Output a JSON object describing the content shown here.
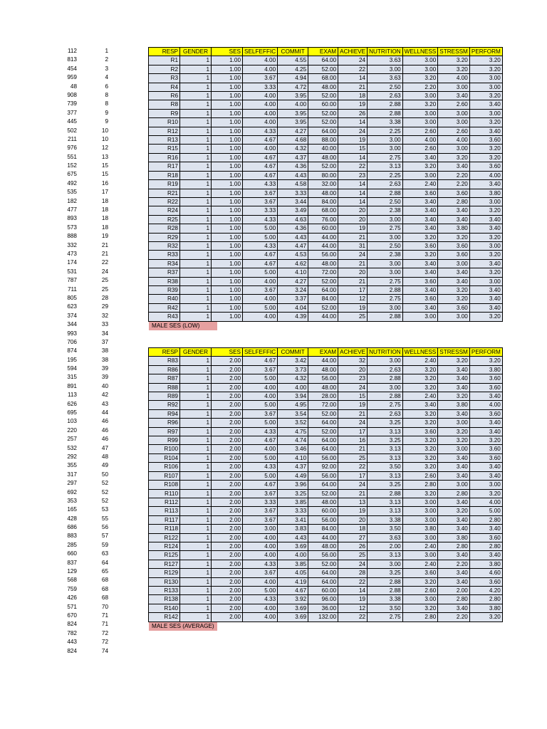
{
  "left_columns": [
    [
      "112",
      "1"
    ],
    [
      "813",
      "2"
    ],
    [
      "454",
      "3"
    ],
    [
      "959",
      "4"
    ],
    [
      "48",
      "6"
    ],
    [
      "908",
      "8"
    ],
    [
      "739",
      "8"
    ],
    [
      "377",
      "9"
    ],
    [
      "445",
      "9"
    ],
    [
      "502",
      "10"
    ],
    [
      "211",
      "10"
    ],
    [
      "976",
      "12"
    ],
    [
      "551",
      "13"
    ],
    [
      "152",
      "15"
    ],
    [
      "675",
      "15"
    ],
    [
      "492",
      "16"
    ],
    [
      "535",
      "17"
    ],
    [
      "182",
      "18"
    ],
    [
      "477",
      "18"
    ],
    [
      "893",
      "18"
    ],
    [
      "573",
      "18"
    ],
    [
      "888",
      "19"
    ],
    [
      "332",
      "21"
    ],
    [
      "473",
      "21"
    ],
    [
      "174",
      "22"
    ],
    [
      "531",
      "24"
    ],
    [
      "787",
      "25"
    ],
    [
      "711",
      "25"
    ],
    [
      "805",
      "28"
    ],
    [
      "623",
      "29"
    ],
    [
      "374",
      "32"
    ],
    [
      "344",
      "33"
    ],
    [
      "993",
      "34"
    ],
    [
      "706",
      "37"
    ],
    [
      "874",
      "38"
    ],
    [
      "195",
      "38"
    ],
    [
      "594",
      "39"
    ],
    [
      "315",
      "39"
    ],
    [
      "891",
      "40"
    ],
    [
      "113",
      "42"
    ],
    [
      "626",
      "43"
    ],
    [
      "695",
      "44"
    ],
    [
      "103",
      "46"
    ],
    [
      "220",
      "46"
    ],
    [
      "257",
      "46"
    ],
    [
      "532",
      "47"
    ],
    [
      "292",
      "48"
    ],
    [
      "355",
      "49"
    ],
    [
      "317",
      "50"
    ],
    [
      "297",
      "52"
    ],
    [
      "692",
      "52"
    ],
    [
      "353",
      "52"
    ],
    [
      "165",
      "53"
    ],
    [
      "428",
      "55"
    ],
    [
      "686",
      "56"
    ],
    [
      "883",
      "57"
    ],
    [
      "285",
      "59"
    ],
    [
      "660",
      "63"
    ],
    [
      "837",
      "64"
    ],
    [
      "129",
      "65"
    ],
    [
      "568",
      "68"
    ],
    [
      "759",
      "68"
    ],
    [
      "426",
      "68"
    ],
    [
      "571",
      "70"
    ],
    [
      "670",
      "71"
    ],
    [
      "824",
      "71"
    ],
    [
      "782",
      "72"
    ],
    [
      "443",
      "72"
    ],
    [
      "824",
      "74"
    ]
  ],
  "headers": [
    "RESP",
    "GENDER",
    "SES",
    "SELFEFFIC",
    "COMMIT",
    "EXAM",
    "ACHIEVE",
    "NUTRITION",
    "WELLNESS",
    "STRESSM",
    "PERFORM"
  ],
  "table1": [
    [
      "R1",
      "1",
      "1.00",
      "4.00",
      "4.55",
      "64.00",
      "24",
      "3.63",
      "3.00",
      "3.20",
      "3.20"
    ],
    [
      "R2",
      "1",
      "1.00",
      "4.00",
      "4.25",
      "52.00",
      "22",
      "3.00",
      "3.00",
      "3.20",
      "3.20"
    ],
    [
      "R3",
      "1",
      "1.00",
      "3.67",
      "4.94",
      "68.00",
      "14",
      "3.63",
      "3.20",
      "4.00",
      "3.00"
    ],
    [
      "R4",
      "1",
      "1.00",
      "3.33",
      "4.72",
      "48.00",
      "21",
      "2.50",
      "2.20",
      "3.00",
      "3.00"
    ],
    [
      "R6",
      "1",
      "1.00",
      "4.00",
      "3.95",
      "52.00",
      "18",
      "2.63",
      "3.00",
      "3.40",
      "3.20"
    ],
    [
      "R8",
      "1",
      "1.00",
      "4.00",
      "4.00",
      "60.00",
      "19",
      "2.88",
      "3.20",
      "2.60",
      "3.40"
    ],
    [
      "R9",
      "1",
      "1.00",
      "4.00",
      "3.95",
      "52.00",
      "26",
      "2.88",
      "3.00",
      "3.00",
      "3.00"
    ],
    [
      "R10",
      "1",
      "1.00",
      "4.00",
      "3.95",
      "52.00",
      "14",
      "3.38",
      "3.00",
      "3.00",
      "3.20"
    ],
    [
      "R12",
      "1",
      "1.00",
      "4.33",
      "4.27",
      "64.00",
      "24",
      "2.25",
      "2.60",
      "2.60",
      "3.40"
    ],
    [
      "R13",
      "1",
      "1.00",
      "4.67",
      "4.68",
      "88.00",
      "19",
      "3.00",
      "4.00",
      "4.00",
      "3.60"
    ],
    [
      "R15",
      "1",
      "1.00",
      "4.00",
      "4.32",
      "40.00",
      "15",
      "3.00",
      "2.60",
      "3.00",
      "3.20"
    ],
    [
      "R16",
      "1",
      "1.00",
      "4.67",
      "4.37",
      "48.00",
      "14",
      "2.75",
      "3.40",
      "3.20",
      "3.20"
    ],
    [
      "R17",
      "1",
      "1.00",
      "4.67",
      "4.36",
      "52.00",
      "22",
      "3.13",
      "3.20",
      "3.40",
      "3.60"
    ],
    [
      "R18",
      "1",
      "1.00",
      "4.67",
      "4.43",
      "80.00",
      "23",
      "2.25",
      "3.00",
      "2.20",
      "4.00"
    ],
    [
      "R19",
      "1",
      "1.00",
      "4.33",
      "4.58",
      "32.00",
      "14",
      "2.63",
      "2.40",
      "2.20",
      "3.40"
    ],
    [
      "R21",
      "1",
      "1.00",
      "3.67",
      "3.33",
      "48.00",
      "14",
      "2.88",
      "3.60",
      "3.60",
      "3.80"
    ],
    [
      "R22",
      "1",
      "1.00",
      "3.67",
      "3.44",
      "84.00",
      "14",
      "2.50",
      "3.40",
      "2.80",
      "3.00"
    ],
    [
      "R24",
      "1",
      "1.00",
      "3.33",
      "3.49",
      "68.00",
      "20",
      "2.38",
      "3.40",
      "3.40",
      "3.20"
    ],
    [
      "R25",
      "1",
      "1.00",
      "4.33",
      "4.63",
      "76.00",
      "20",
      "3.00",
      "3.40",
      "3.40",
      "3.40"
    ],
    [
      "R28",
      "1",
      "1.00",
      "5.00",
      "4.36",
      "60.00",
      "19",
      "2.75",
      "3.40",
      "3.80",
      "3.40"
    ],
    [
      "R29",
      "1",
      "1.00",
      "5.00",
      "4.43",
      "44.00",
      "21",
      "3.00",
      "3.20",
      "3.20",
      "3.20"
    ],
    [
      "R32",
      "1",
      "1.00",
      "4.33",
      "4.47",
      "44.00",
      "31",
      "2.50",
      "3.60",
      "3.60",
      "3.00"
    ],
    [
      "R33",
      "1",
      "1.00",
      "4.67",
      "4.53",
      "56.00",
      "24",
      "2.38",
      "3.20",
      "3.60",
      "3.20"
    ],
    [
      "R34",
      "1",
      "1.00",
      "4.67",
      "4.62",
      "48.00",
      "21",
      "3.00",
      "3.40",
      "3.00",
      "3.40"
    ],
    [
      "R37",
      "1",
      "1.00",
      "5.00",
      "4.10",
      "72.00",
      "20",
      "3.00",
      "3.40",
      "3.40",
      "3.20"
    ],
    [
      "R38",
      "1",
      "1.00",
      "4.00",
      "4.27",
      "52.00",
      "21",
      "2.75",
      "3.60",
      "3.40",
      "3.00"
    ],
    [
      "R39",
      "1",
      "1.00",
      "3.67",
      "3.24",
      "64.00",
      "17",
      "2.88",
      "3.40",
      "3.20",
      "3.40"
    ],
    [
      "R40",
      "1",
      "1.00",
      "4.00",
      "3.37",
      "84.00",
      "12",
      "2.75",
      "3.60",
      "3.20",
      "3.40"
    ],
    [
      "R42",
      "1",
      "1.00",
      "5.00",
      "4.04",
      "52.00",
      "19",
      "3.00",
      "3.40",
      "3.60",
      "3.40"
    ],
    [
      "R43",
      "1",
      "1.00",
      "4.00",
      "4.39",
      "44.00",
      "25",
      "2.88",
      "3.00",
      "3.00",
      "3.20"
    ]
  ],
  "table2": [
    [
      "R83",
      "1",
      "2.00",
      "4.67",
      "3.42",
      "44.00",
      "32",
      "3.00",
      "2.40",
      "3.20",
      "3.20"
    ],
    [
      "R86",
      "1",
      "2.00",
      "3.67",
      "3.73",
      "48.00",
      "20",
      "2.63",
      "3.20",
      "3.40",
      "3.80"
    ],
    [
      "R87",
      "1",
      "2.00",
      "5.00",
      "4.32",
      "56.00",
      "23",
      "2.88",
      "3.20",
      "3.40",
      "3.60"
    ],
    [
      "R88",
      "1",
      "2.00",
      "4.00",
      "4.00",
      "48.00",
      "24",
      "3.00",
      "3.20",
      "3.40",
      "3.60"
    ],
    [
      "R89",
      "1",
      "2.00",
      "4.00",
      "3.94",
      "28.00",
      "15",
      "2.88",
      "2.40",
      "3.20",
      "3.40"
    ],
    [
      "R92",
      "1",
      "2.00",
      "5.00",
      "4.95",
      "72.00",
      "19",
      "2.75",
      "3.40",
      "3.80",
      "4.00"
    ],
    [
      "R94",
      "1",
      "2.00",
      "3.67",
      "3.54",
      "52.00",
      "21",
      "2.63",
      "3.20",
      "3.40",
      "3.60"
    ],
    [
      "R96",
      "1",
      "2.00",
      "5.00",
      "3.52",
      "64.00",
      "24",
      "3.25",
      "3.20",
      "3.00",
      "3.40"
    ],
    [
      "R97",
      "1",
      "2.00",
      "4.33",
      "4.75",
      "52.00",
      "17",
      "3.13",
      "3.60",
      "3.20",
      "3.40"
    ],
    [
      "R99",
      "1",
      "2.00",
      "4.67",
      "4.74",
      "64.00",
      "16",
      "3.25",
      "3.20",
      "3.20",
      "3.20"
    ],
    [
      "R100",
      "1",
      "2.00",
      "4.00",
      "3.46",
      "64.00",
      "21",
      "3.13",
      "3.20",
      "3.00",
      "3.60"
    ],
    [
      "R104",
      "1",
      "2.00",
      "5.00",
      "4.10",
      "56.00",
      "25",
      "3.13",
      "3.20",
      "3.40",
      "3.60"
    ],
    [
      "R106",
      "1",
      "2.00",
      "4.33",
      "4.37",
      "92.00",
      "22",
      "3.50",
      "3.20",
      "3.40",
      "3.40"
    ],
    [
      "R107",
      "1",
      "2.00",
      "5.00",
      "4.49",
      "56.00",
      "17",
      "3.13",
      "2.60",
      "3.40",
      "3.40"
    ],
    [
      "R108",
      "1",
      "2.00",
      "4.67",
      "3.96",
      "64.00",
      "24",
      "3.25",
      "2.80",
      "3.00",
      "3.00"
    ],
    [
      "R110",
      "1",
      "2.00",
      "3.67",
      "3.25",
      "52.00",
      "21",
      "2.88",
      "3.20",
      "2.80",
      "3.20"
    ],
    [
      "R112",
      "1",
      "2.00",
      "3.33",
      "3.85",
      "48.00",
      "13",
      "3.13",
      "3.00",
      "3.40",
      "4.00"
    ],
    [
      "R113",
      "1",
      "2.00",
      "3.67",
      "3.33",
      "60.00",
      "19",
      "3.13",
      "3.00",
      "3.20",
      "5.00"
    ],
    [
      "R117",
      "1",
      "2.00",
      "3.67",
      "3.41",
      "56.00",
      "20",
      "3.38",
      "3.00",
      "3.40",
      "2.80"
    ],
    [
      "R118",
      "1",
      "2.00",
      "3.00",
      "3.83",
      "84.00",
      "18",
      "3.50",
      "3.80",
      "3.40",
      "3.40"
    ],
    [
      "R122",
      "1",
      "2.00",
      "4.00",
      "4.43",
      "44.00",
      "27",
      "3.63",
      "3.00",
      "3.80",
      "3.60"
    ],
    [
      "R124",
      "1",
      "2.00",
      "4.00",
      "3.69",
      "48.00",
      "26",
      "2.00",
      "2.40",
      "2.80",
      "2.80"
    ],
    [
      "R125",
      "1",
      "2.00",
      "4.00",
      "4.00",
      "56.00",
      "25",
      "3.13",
      "3.00",
      "3.40",
      "3.40"
    ],
    [
      "R127",
      "1",
      "2.00",
      "4.33",
      "3.85",
      "52.00",
      "24",
      "3.00",
      "2.40",
      "2.20",
      "3.80"
    ],
    [
      "R129",
      "1",
      "2.00",
      "3.67",
      "4.05",
      "64.00",
      "28",
      "3.25",
      "3.60",
      "3.40",
      "4.60"
    ],
    [
      "R130",
      "1",
      "2.00",
      "4.00",
      "4.19",
      "64.00",
      "22",
      "2.88",
      "3.20",
      "3.40",
      "3.60"
    ],
    [
      "R133",
      "1",
      "2.00",
      "5.00",
      "4.67",
      "60.00",
      "14",
      "2.88",
      "2.60",
      "2.00",
      "4.20"
    ],
    [
      "R138",
      "1",
      "2.00",
      "4.33",
      "3.92",
      "96.00",
      "19",
      "3.38",
      "3.00",
      "2.80",
      "2.80"
    ],
    [
      "R140",
      "1",
      "2.00",
      "4.00",
      "3.69",
      "36.00",
      "12",
      "3.50",
      "3.20",
      "3.40",
      "3.80"
    ],
    [
      "R142",
      "1",
      "2.00",
      "4.00",
      "3.69",
      "132.00",
      "22",
      "2.75",
      "2.80",
      "2.20",
      "3.20"
    ]
  ],
  "label1": "MALE  SES (LOW)",
  "label2": "MALE  SES (AVERAGE)",
  "colors": {
    "header_bg": "#ffff00",
    "row_bg": "#dde3ee",
    "label_bg": "#e6a0a0"
  }
}
